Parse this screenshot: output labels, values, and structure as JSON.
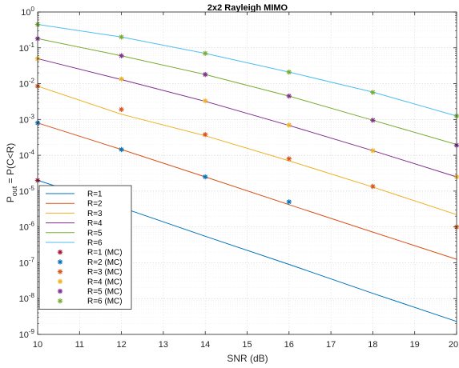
{
  "chart_data": {
    "type": "line",
    "title": "2x2 Rayleigh MIMO",
    "xlabel": "SNR (dB)",
    "ylabel": {
      "base": "P",
      "sub": "out",
      "rest": " = P(C<R)"
    },
    "xlim": [
      10,
      20
    ],
    "ylim": [
      1e-09,
      1
    ],
    "yscale": "log",
    "grid": true,
    "minor_grid": true,
    "legend_position": "bottom-left",
    "x_ticks": [
      "10",
      "11",
      "12",
      "13",
      "14",
      "15",
      "16",
      "17",
      "18",
      "19",
      "20"
    ],
    "y_ticks": [
      {
        "base": "10",
        "exp": "-9"
      },
      {
        "base": "10",
        "exp": "-8"
      },
      {
        "base": "10",
        "exp": "-7"
      },
      {
        "base": "10",
        "exp": "-6"
      },
      {
        "base": "10",
        "exp": "-5"
      },
      {
        "base": "10",
        "exp": "-4"
      },
      {
        "base": "10",
        "exp": "-3"
      },
      {
        "base": "10",
        "exp": "-2"
      },
      {
        "base": "10",
        "exp": "-1"
      },
      {
        "base": "10",
        "exp": "0"
      }
    ],
    "series": [
      {
        "name": "R=1",
        "color": "#0072BD",
        "x": [
          10,
          12,
          14,
          16,
          18,
          20
        ],
        "y": [
          2e-05,
          3.5e-06,
          5.5e-07,
          9e-08,
          1.4e-08,
          2.3e-09
        ]
      },
      {
        "name": "R=2",
        "color": "#D95319",
        "x": [
          10,
          12,
          14,
          16,
          18,
          20
        ],
        "y": [
          0.0008,
          0.000145,
          2.5e-05,
          4.2e-06,
          7.2e-07,
          1.25e-07
        ]
      },
      {
        "name": "R=3",
        "color": "#EDB120",
        "x": [
          10,
          12,
          14,
          16,
          18,
          20
        ],
        "y": [
          0.0085,
          0.0014,
          0.00035,
          7e-05,
          1.3e-05,
          2.2e-06
        ]
      },
      {
        "name": "R=4",
        "color": "#7E2F8E",
        "x": [
          10,
          12,
          14,
          16,
          18,
          20
        ],
        "y": [
          0.05,
          0.013,
          0.0032,
          0.00068,
          0.000135,
          2.5e-05
        ]
      },
      {
        "name": "R=5",
        "color": "#77AC30",
        "x": [
          10,
          12,
          14,
          16,
          18,
          20
        ],
        "y": [
          0.18,
          0.06,
          0.018,
          0.0045,
          0.00095,
          0.0002
        ]
      },
      {
        "name": "R=6",
        "color": "#4DBEEE",
        "x": [
          10,
          12,
          14,
          16,
          18,
          20
        ],
        "y": [
          0.45,
          0.2,
          0.07,
          0.021,
          0.0058,
          0.00125
        ]
      }
    ],
    "mc_series": [
      {
        "name": "R=1 (MC)",
        "color": "#A2142F",
        "x": [
          10
        ],
        "y": [
          2e-05
        ]
      },
      {
        "name": "R=2 (MC)",
        "color": "#0072BD",
        "x": [
          10,
          12,
          14,
          16
        ],
        "y": [
          0.0008,
          0.000145,
          2.5e-05,
          5e-06
        ]
      },
      {
        "name": "R=3 (MC)",
        "color": "#D95319",
        "x": [
          10,
          12,
          14,
          16,
          18,
          20
        ],
        "y": [
          0.0085,
          0.0019,
          0.00038,
          8e-05,
          1.35e-05,
          1e-06
        ]
      },
      {
        "name": "R=4 (MC)",
        "color": "#EDB120",
        "x": [
          10,
          12,
          14,
          16,
          18,
          20
        ],
        "y": [
          0.05,
          0.0135,
          0.0033,
          0.0007,
          0.000135,
          2.5e-05
        ]
      },
      {
        "name": "R=5 (MC)",
        "color": "#7E2F8E",
        "x": [
          10,
          12,
          14,
          16,
          18,
          20
        ],
        "y": [
          0.18,
          0.06,
          0.018,
          0.0045,
          0.00095,
          0.00019
        ]
      },
      {
        "name": "R=6 (MC)",
        "color": "#77AC30",
        "x": [
          10,
          12,
          14,
          16,
          18,
          20
        ],
        "y": [
          0.45,
          0.2,
          0.07,
          0.021,
          0.0057,
          0.00125
        ]
      }
    ]
  }
}
